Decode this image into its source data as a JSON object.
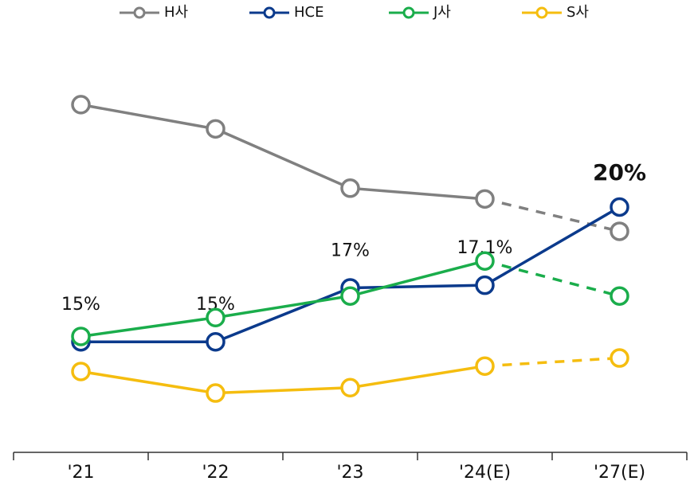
{
  "chart_data": {
    "type": "line",
    "categories": [
      "'21",
      "'22",
      "'23",
      "'24(E)",
      "'27(E)"
    ],
    "series": [
      {
        "name": "H사",
        "color": "#808080",
        "values": [
          23.8,
          22.9,
          20.7,
          20.3,
          19.1
        ],
        "dashed_last": true
      },
      {
        "name": "HCE",
        "color": "#0b3a8c",
        "values": [
          15,
          15,
          17,
          17.1,
          20
        ],
        "value_labels": [
          "15%",
          "15%",
          "17%",
          "17.1%",
          "20%"
        ],
        "dashed_last": false
      },
      {
        "name": "J사",
        "color": "#1aad4b",
        "values": [
          15.2,
          15.9,
          16.7,
          18.0,
          16.7
        ],
        "dashed_last": true
      },
      {
        "name": "S사",
        "color": "#f5bd0f",
        "values": [
          13.9,
          13.1,
          13.3,
          14.1,
          14.4
        ],
        "dashed_last": true
      }
    ],
    "ylim": [
      10.9,
      26.5
    ],
    "legend": "top"
  }
}
